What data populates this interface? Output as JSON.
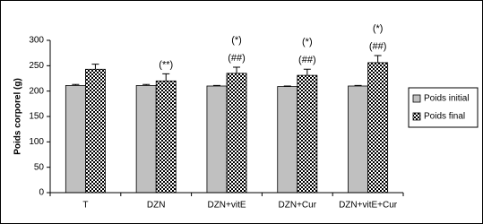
{
  "chart_data": {
    "type": "bar",
    "y_label": "Poids corporel (g)",
    "categories": [
      "T",
      "DZN",
      "DZN+vitE",
      "DZN+Cur",
      "DZN+vitE+Cur"
    ],
    "series": [
      {
        "name": "Poids initial",
        "color": "#c0c0c0",
        "values": [
          211,
          211,
          210,
          209,
          210
        ],
        "errors": [
          2,
          2,
          1,
          1,
          1
        ]
      },
      {
        "name": "Poids final",
        "color": "#000000",
        "pattern": "checkerboard",
        "values": [
          243,
          220,
          235,
          231,
          256
        ],
        "errors": [
          10,
          14,
          12,
          12,
          14
        ]
      }
    ],
    "annotations": [
      null,
      [
        "(**)"
      ],
      [
        "(*)",
        "(##)"
      ],
      [
        "(*)",
        "(##)"
      ],
      [
        "(*)",
        "(##)"
      ]
    ],
    "ylim": [
      0,
      300
    ],
    "yticks": [
      0,
      50,
      100,
      150,
      200,
      250,
      300
    ],
    "legend": "right"
  }
}
